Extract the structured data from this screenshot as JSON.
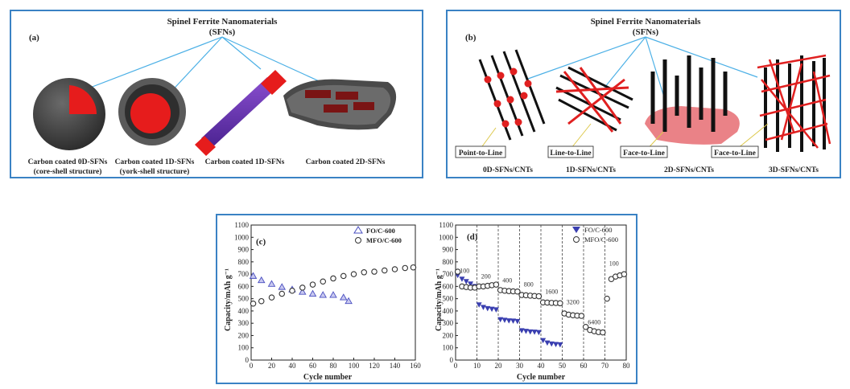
{
  "panel_a": {
    "letter": "(a)",
    "title_line1": "Spinel Ferrite Nanomaterials",
    "title_line2": "(SFNs)",
    "items": [
      {
        "line1": "Carbon coated 0D-SFNs",
        "line2": "(core-shell structure)"
      },
      {
        "line1": "Carbon coated 1D-SFNs",
        "line2": "(york-shell structure)"
      },
      {
        "line1": "Carbon coated 1D-SFNs",
        "line2": ""
      },
      {
        "line1": "Carbon coated 2D-SFNs",
        "line2": ""
      }
    ]
  },
  "panel_b": {
    "letter": "(b)",
    "title_line1": "Spinel Ferrite Nanomaterials",
    "title_line2": "(SFNs)",
    "contacts": [
      "Point-to-Line",
      "Line-to-Line",
      "Face-to-Line",
      "Face-to-Line"
    ],
    "items": [
      "0D-SFNs/CNTs",
      "1D-SFNs/CNTs",
      "2D-SFNs/CNTs",
      "3D-SFNs/CNTs"
    ]
  },
  "panel_c": {
    "letter": "(c)",
    "ylabel": "Capacity/mAh g⁻¹",
    "xlabel": "Cycle number",
    "legend": [
      "FO/C-600",
      "MFO/C-600"
    ]
  },
  "panel_d": {
    "letter": "(d)",
    "ylabel": "Capacity/mAh g⁻¹",
    "xlabel": "Cycle number",
    "legend": [
      "FO/C-600",
      "MFO/C-600"
    ],
    "rate_labels": [
      "100",
      "200",
      "400",
      "800",
      "1600",
      "3200",
      "6400",
      "100"
    ]
  },
  "chart_data": [
    {
      "type": "scatter",
      "xlabel": "Cycle number",
      "ylabel": "Capacity/mAh g⁻¹",
      "xlim": [
        0,
        160
      ],
      "ylim": [
        0,
        1100
      ],
      "xticks": [
        0,
        20,
        40,
        60,
        80,
        100,
        120,
        140,
        160
      ],
      "yticks": [
        0,
        100,
        200,
        300,
        400,
        500,
        600,
        700,
        800,
        900,
        1000,
        1100
      ],
      "series": [
        {
          "name": "FO/C-600",
          "marker": "triangle",
          "color": "#4a4fc0",
          "x": [
            2,
            10,
            20,
            30,
            40,
            50,
            60,
            70,
            80,
            90,
            95
          ],
          "y": [
            685,
            650,
            620,
            595,
            575,
            555,
            540,
            530,
            530,
            510,
            480
          ]
        },
        {
          "name": "MFO/C-600",
          "marker": "circle",
          "color": "#333333",
          "x": [
            2,
            10,
            20,
            30,
            40,
            50,
            60,
            70,
            80,
            90,
            100,
            110,
            120,
            130,
            140,
            150,
            158
          ],
          "y": [
            460,
            480,
            510,
            540,
            565,
            590,
            615,
            640,
            665,
            685,
            700,
            715,
            720,
            730,
            740,
            750,
            755
          ]
        }
      ]
    },
    {
      "type": "scatter",
      "xlabel": "Cycle number",
      "ylabel": "Capacity/mAh g⁻¹",
      "xlim": [
        0,
        80
      ],
      "ylim": [
        0,
        1100
      ],
      "xticks": [
        0,
        10,
        20,
        30,
        40,
        50,
        60,
        70,
        80
      ],
      "yticks": [
        0,
        100,
        200,
        300,
        400,
        500,
        600,
        700,
        800,
        900,
        1000,
        1100
      ],
      "series": [
        {
          "name": "FO/C-600",
          "marker": "triangle-down",
          "color": "#3a3fb0",
          "x": [
            1,
            3,
            5,
            7,
            9,
            11,
            13,
            15,
            17,
            19,
            21,
            23,
            25,
            27,
            29,
            31,
            33,
            35,
            37,
            39,
            41,
            43,
            45,
            47,
            49
          ],
          "y": [
            690,
            660,
            640,
            620,
            600,
            450,
            430,
            420,
            415,
            410,
            330,
            325,
            320,
            318,
            315,
            240,
            235,
            230,
            228,
            225,
            160,
            140,
            132,
            128,
            125
          ]
        },
        {
          "name": "MFO/C-600",
          "marker": "circle",
          "color": "#333333",
          "x": [
            1,
            3,
            5,
            7,
            9,
            11,
            13,
            15,
            17,
            19,
            21,
            23,
            25,
            27,
            29,
            31,
            33,
            35,
            37,
            39,
            41,
            43,
            45,
            47,
            49,
            51,
            53,
            55,
            57,
            59,
            61,
            63,
            65,
            67,
            69,
            71,
            73,
            75,
            77,
            79
          ],
          "y": [
            720,
            600,
            595,
            590,
            590,
            600,
            600,
            605,
            610,
            615,
            570,
            565,
            562,
            560,
            558,
            530,
            528,
            525,
            522,
            520,
            470,
            468,
            466,
            465,
            463,
            380,
            370,
            365,
            362,
            360,
            270,
            245,
            235,
            228,
            225,
            500,
            660,
            680,
            690,
            700
          ]
        }
      ],
      "annotations": [
        {
          "text": "100",
          "x": 2,
          "y": 710
        },
        {
          "text": "200",
          "x": 12,
          "y": 665
        },
        {
          "text": "400",
          "x": 22,
          "y": 632
        },
        {
          "text": "800",
          "x": 32,
          "y": 600
        },
        {
          "text": "1600",
          "x": 42,
          "y": 540
        },
        {
          "text": "3200",
          "x": 52,
          "y": 455
        },
        {
          "text": "6400",
          "x": 62,
          "y": 290
        },
        {
          "text": "100",
          "x": 72,
          "y": 770
        }
      ],
      "vlines": [
        10,
        20,
        30,
        40,
        50,
        60,
        70
      ]
    }
  ]
}
